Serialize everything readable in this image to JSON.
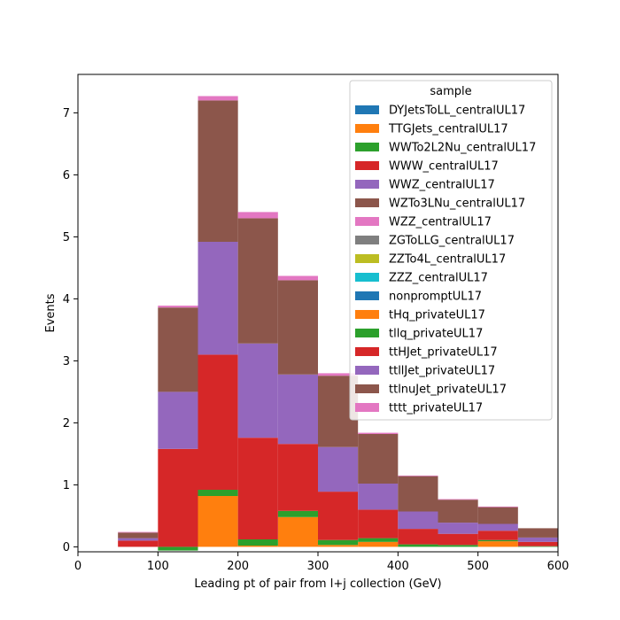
{
  "chart_data": {
    "type": "bar",
    "stacked": true,
    "histogram": true,
    "xlabel": "Leading pt of pair from l+j collection (GeV)",
    "ylabel": "Events",
    "xlim": [
      0,
      600
    ],
    "ylim": [
      -0.08,
      7.62
    ],
    "xticks": [
      0,
      100,
      200,
      300,
      400,
      500,
      600
    ],
    "yticks": [
      0,
      1,
      2,
      3,
      4,
      5,
      6,
      7
    ],
    "grid": false,
    "legend": {
      "title": "sample",
      "placement": "top-right"
    },
    "bin_edges": [
      50,
      100,
      150,
      200,
      250,
      300,
      350,
      400,
      450,
      500,
      550,
      600
    ],
    "series": [
      {
        "name": "DYJetsToLL_centralUL17",
        "color": "#1f77b4",
        "values": [
          0,
          0,
          0,
          0,
          0,
          0,
          0,
          0,
          0,
          0,
          0
        ]
      },
      {
        "name": "TTGJets_centralUL17",
        "color": "#ff7f0e",
        "values": [
          0,
          0,
          0.82,
          0.02,
          0.48,
          0.03,
          0.08,
          0,
          0,
          0.09,
          0
        ]
      },
      {
        "name": "WWTo2L2Nu_centralUL17",
        "color": "#2ca02c",
        "values": [
          0,
          -0.06,
          0.1,
          0.1,
          0.1,
          0.08,
          0.06,
          0.04,
          0.03,
          0.02,
          0.01
        ]
      },
      {
        "name": "WWW_centralUL17",
        "color": "#d62728",
        "values": [
          0.1,
          1.58,
          2.18,
          1.64,
          1.08,
          0.78,
          0.46,
          0.25,
          0.18,
          0.15,
          0.07
        ]
      },
      {
        "name": "WWZ_centralUL17",
        "color": "#9467bd",
        "values": [
          0.04,
          0.92,
          1.82,
          1.52,
          1.12,
          0.72,
          0.42,
          0.28,
          0.18,
          0.11,
          0.07
        ]
      },
      {
        "name": "WZTo3LNu_centralUL17",
        "color": "#8c564b",
        "values": [
          0.09,
          1.36,
          2.28,
          2.02,
          1.52,
          1.15,
          0.8,
          0.57,
          0.37,
          0.27,
          0.15
        ]
      },
      {
        "name": "WZZ_centralUL17",
        "color": "#e377c2",
        "values": [
          0.01,
          0.03,
          0.07,
          0.1,
          0.07,
          0.04,
          0.02,
          0.01,
          0.01,
          0.01,
          0
        ]
      },
      {
        "name": "ZGToLLG_centralUL17",
        "color": "#7f7f7f",
        "values": [
          0,
          0,
          0,
          0,
          0,
          0,
          0,
          0,
          0,
          0,
          0
        ]
      },
      {
        "name": "ZZTo4L_centralUL17",
        "color": "#bcbd22",
        "values": [
          0,
          0,
          0,
          0,
          0,
          0,
          0,
          0,
          0,
          0,
          0
        ]
      },
      {
        "name": "ZZZ_centralUL17",
        "color": "#17becf",
        "values": [
          0,
          0,
          0,
          0,
          0,
          0,
          0,
          0,
          0,
          0,
          0
        ]
      },
      {
        "name": "nonpromptUL17",
        "color": "#1f77b4",
        "values": [
          0,
          0,
          0,
          0,
          0,
          0,
          0,
          0,
          0,
          0,
          0
        ]
      },
      {
        "name": "tHq_privateUL17",
        "color": "#ff7f0e",
        "values": [
          0,
          0,
          0,
          0,
          0,
          0,
          0,
          0,
          0,
          0,
          0
        ]
      },
      {
        "name": "tllq_privateUL17",
        "color": "#2ca02c",
        "values": [
          0,
          0,
          0,
          0,
          0,
          0,
          0,
          0,
          0,
          0,
          0
        ]
      },
      {
        "name": "ttHJet_privateUL17",
        "color": "#d62728",
        "values": [
          0,
          0,
          0,
          0,
          0,
          0,
          0,
          0,
          0,
          0,
          0
        ]
      },
      {
        "name": "ttllJet_privateUL17",
        "color": "#9467bd",
        "values": [
          0,
          0,
          0,
          0,
          0,
          0,
          0,
          0,
          0,
          0,
          0
        ]
      },
      {
        "name": "ttlnuJet_privateUL17",
        "color": "#8c564b",
        "values": [
          0,
          0,
          0,
          0,
          0,
          0,
          0,
          0,
          0,
          0,
          0
        ]
      },
      {
        "name": "tttt_privateUL17",
        "color": "#e377c2",
        "values": [
          0,
          0,
          0,
          0,
          0,
          0,
          0,
          0,
          0,
          0,
          0
        ]
      }
    ]
  }
}
